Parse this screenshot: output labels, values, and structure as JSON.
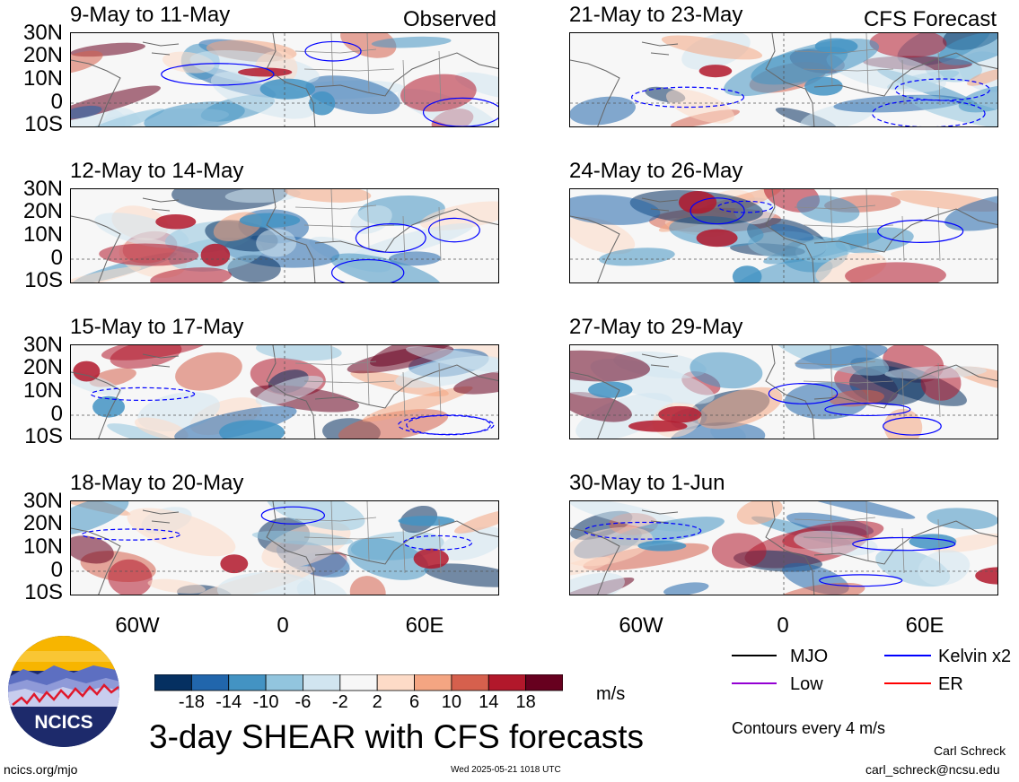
{
  "panels": [
    {
      "title": "9-May to 11-May",
      "tag": "Observed"
    },
    {
      "title": "12-May to 14-May",
      "tag": ""
    },
    {
      "title": "15-May to 17-May",
      "tag": ""
    },
    {
      "title": "18-May to 20-May",
      "tag": ""
    },
    {
      "title": "21-May to 23-May",
      "tag": "CFS Forecast"
    },
    {
      "title": "24-May to 26-May",
      "tag": ""
    },
    {
      "title": "27-May to 29-May",
      "tag": ""
    },
    {
      "title": "30-May to 1-Jun",
      "tag": ""
    }
  ],
  "lat_labels": [
    "30N",
    "20N",
    "10N",
    "0",
    "10S"
  ],
  "lon_labels": [
    "60W",
    "0",
    "60E"
  ],
  "colorbar": {
    "labels": [
      "-18",
      "-14",
      "-10",
      "-6",
      "-2",
      "2",
      "6",
      "10",
      "14",
      "18"
    ],
    "colors": [
      "#053061",
      "#2166ac",
      "#4393c3",
      "#92c5de",
      "#d1e5f0",
      "#f7f7f7",
      "#fddbc7",
      "#f4a582",
      "#d6604d",
      "#b2182b",
      "#67001f"
    ],
    "units": "m/s"
  },
  "legend": {
    "items": [
      {
        "label": "MJO",
        "color": "#000000"
      },
      {
        "label": "Kelvin x2",
        "color": "#0000ff"
      },
      {
        "label": "Low",
        "color": "#9400d3"
      },
      {
        "label": "ER",
        "color": "#ff0000"
      }
    ],
    "contours_note": "Contours every 4 m/s"
  },
  "main_title": "3-day SHEAR with CFS forecasts",
  "logo_text": "NCICS",
  "footer": {
    "left": "ncics.org/mjo",
    "center": "Wed 2025-05-21 1018 UTC",
    "author": "Carl Schreck",
    "email": "carl_schreck@ncsu.edu"
  }
}
